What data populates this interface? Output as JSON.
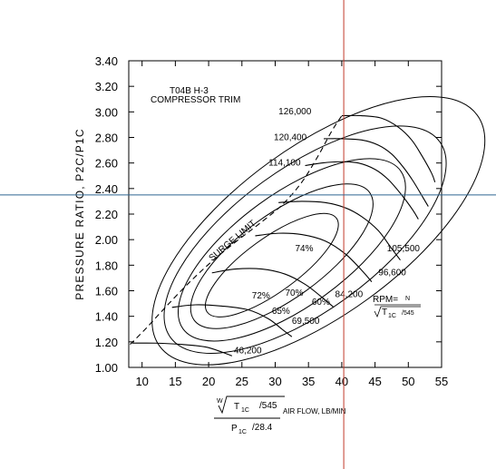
{
  "chart_data": {
    "type": "line",
    "title": "T04B H-3",
    "subtitle": "COMPRESSOR TRIM",
    "ylabel": "PRESSURE RATIO, P2C/P1C",
    "xlabel": {
      "w": "W",
      "t1c": "T",
      "t1c_sub": "1C",
      "t1c_div": "/545",
      "p1c": "P",
      "p1c_sub": "1C",
      "p1c_div": "/28.4",
      "suffix": "AIR FLOW, LB/MIN"
    },
    "xlim": [
      8,
      55
    ],
    "ylim": [
      1.0,
      3.4
    ],
    "x_ticks": [
      10,
      15,
      20,
      25,
      30,
      35,
      40,
      45,
      50,
      55
    ],
    "y_ticks": [
      1.0,
      1.2,
      1.4,
      1.6,
      1.8,
      2.0,
      2.2,
      2.4,
      2.6,
      2.8,
      3.0,
      3.2,
      3.4
    ],
    "y_tick_labels": [
      "1.00",
      "1.20",
      "1.40",
      "1.60",
      "1.80",
      "2.00",
      "2.20",
      "2.40",
      "2.60",
      "2.80",
      "3.00",
      "3.20",
      "3.40"
    ],
    "grid": false,
    "surge_limit": {
      "label": "SURGE LIMIT",
      "x": [
        8.2,
        10.5,
        13.5,
        17.0,
        20.5,
        24.0,
        27.5,
        31.0,
        34.0,
        36.5,
        38.5,
        40.0
      ],
      "y": [
        1.18,
        1.3,
        1.47,
        1.66,
        1.83,
        1.98,
        2.12,
        2.27,
        2.45,
        2.66,
        2.85,
        2.97
      ]
    },
    "speed_lines": [
      {
        "rpm_label": "126,000",
        "x": [
          40.0,
          43.0,
          46.0,
          48.5,
          50.5,
          52.0,
          53.5,
          54.0
        ],
        "y": [
          2.97,
          2.97,
          2.95,
          2.88,
          2.78,
          2.66,
          2.52,
          2.45
        ]
      },
      {
        "rpm_label": "120,400",
        "x": [
          37.3,
          40.0,
          43.0,
          45.5,
          47.5,
          49.2,
          50.7,
          52.2,
          53.0
        ],
        "y": [
          2.79,
          2.79,
          2.78,
          2.74,
          2.67,
          2.57,
          2.46,
          2.33,
          2.26
        ]
      },
      {
        "rpm_label": "114,100",
        "x": [
          34.5,
          37.0,
          40.0,
          42.5,
          45.0,
          47.0,
          49.0,
          50.7,
          51.5
        ],
        "y": [
          2.58,
          2.6,
          2.61,
          2.6,
          2.55,
          2.47,
          2.35,
          2.23,
          2.16
        ]
      },
      {
        "rpm_label": "105,500",
        "x": [
          30.5,
          34.0,
          37.5,
          40.5,
          43.0,
          45.5,
          47.5,
          48.8
        ],
        "y": [
          2.29,
          2.3,
          2.29,
          2.25,
          2.18,
          2.07,
          1.93,
          1.84
        ]
      },
      {
        "rpm_label": "96,600",
        "x": [
          27.0,
          30.5,
          34.0,
          37.5,
          40.5,
          43.0,
          44.5
        ],
        "y": [
          2.03,
          2.05,
          2.04,
          1.99,
          1.89,
          1.76,
          1.67
        ]
      },
      {
        "rpm_label": "84,200",
        "x": [
          20.5,
          24.0,
          28.0,
          31.5,
          34.5,
          37.0,
          38.8
        ],
        "y": [
          1.74,
          1.77,
          1.77,
          1.73,
          1.65,
          1.55,
          1.47
        ]
      },
      {
        "rpm_label": "69,500",
        "x": [
          14.5,
          18.0,
          22.0,
          26.0,
          29.0,
          31.0,
          32.5
        ],
        "y": [
          1.47,
          1.49,
          1.48,
          1.45,
          1.38,
          1.3,
          1.24
        ]
      },
      {
        "rpm_label": "46,200",
        "x": [
          8.5,
          12.0,
          16.0,
          19.5,
          22.0,
          23.5
        ],
        "y": [
          1.19,
          1.19,
          1.18,
          1.16,
          1.12,
          1.09
        ]
      }
    ],
    "speed_label_positions": [
      {
        "rpm_label": "126,000",
        "x": 30.5,
        "y": 2.98
      },
      {
        "rpm_label": "120,400",
        "x": 29.8,
        "y": 2.78
      },
      {
        "rpm_label": "114,100",
        "x": 29.0,
        "y": 2.58
      },
      {
        "rpm_label": "105,500",
        "x": 46.8,
        "y": 1.91
      },
      {
        "rpm_label": "96,600",
        "x": 45.5,
        "y": 1.72
      },
      {
        "rpm_label": "84,200",
        "x": 39.0,
        "y": 1.55
      },
      {
        "rpm_label": "69,500",
        "x": 32.5,
        "y": 1.34
      },
      {
        "rpm_label": "46,200",
        "x": 23.8,
        "y": 1.11
      }
    ],
    "efficiency_islands": [
      {
        "label": "74%",
        "label_x": 33.0,
        "label_y": 1.91,
        "cx": 29.5,
        "cy": 1.8,
        "rx": 12.0,
        "ry": 0.21,
        "angle": -36
      },
      {
        "label": "72%",
        "label_x": 26.5,
        "label_y": 1.54,
        "cx": 31.0,
        "cy": 1.87,
        "rx": 16.3,
        "ry": 0.33,
        "angle": -36
      },
      {
        "label": "70%",
        "label_x": 31.5,
        "label_y": 1.56,
        "cx": 32.5,
        "cy": 1.92,
        "rx": 20.2,
        "ry": 0.44,
        "angle": -36
      },
      {
        "label": "65%",
        "label_x": 29.5,
        "label_y": 1.42,
        "cx": 34.5,
        "cy": 2.0,
        "rx": 25.0,
        "ry": 0.56,
        "angle": -36
      },
      {
        "label": "60%",
        "label_x": 35.5,
        "label_y": 1.49,
        "cx": 36.5,
        "cy": 2.07,
        "rx": 29.5,
        "ry": 0.66,
        "angle": -36
      }
    ],
    "rpm_formula": {
      "prefix": "RPM=",
      "n": "N",
      "t1c": "T",
      "t1c_sub": "1C",
      "t1c_div": "/545"
    },
    "crosshair": {
      "x": 40.3,
      "y": 2.35
    }
  }
}
